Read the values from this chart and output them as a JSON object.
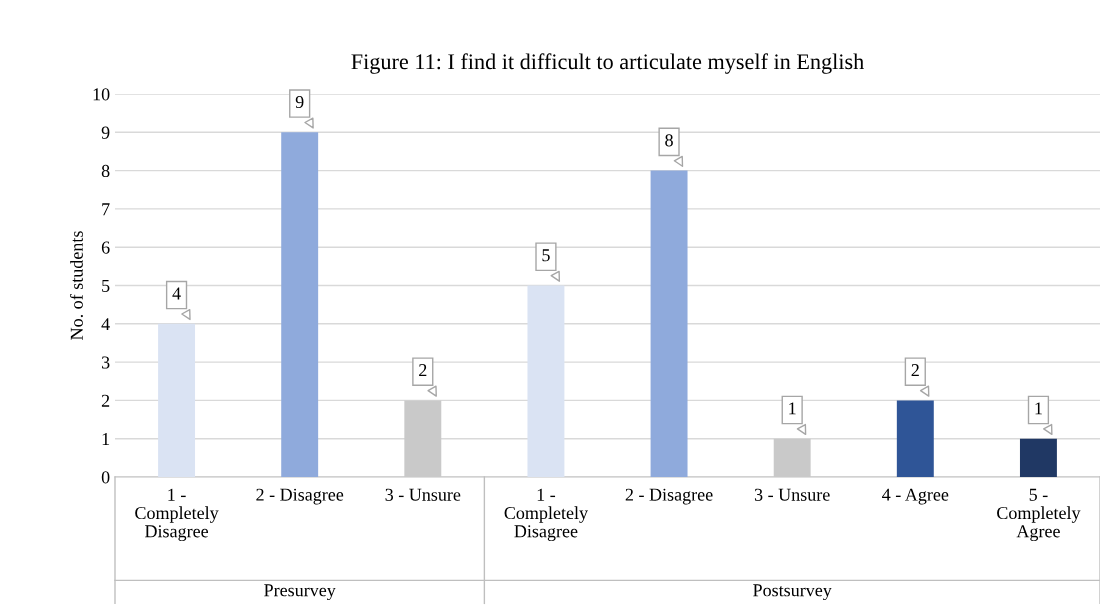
{
  "chart_data": {
    "type": "bar",
    "title": "Figure 11: I find it difficult to articulate myself in English",
    "ylabel": "No. of students",
    "categories": [
      "1 -\nCompletely\nDisagree",
      "2 - Disagree",
      "3 - Unsure",
      "1 -\nCompletely\nDisagree",
      "2 - Disagree",
      "3 - Unsure",
      "4 - Agree",
      "5 -\nCompletely\nAgree"
    ],
    "values": [
      4,
      9,
      2,
      5,
      8,
      1,
      2,
      1
    ],
    "colors": [
      "#dae3f3",
      "#8faadc",
      "#c9c9c9",
      "#dae3f3",
      "#8faadc",
      "#c9c9c9",
      "#2f5597",
      "#203864"
    ],
    "annotations": [
      "Presurvey",
      "Postsurvey"
    ],
    "ylim": [
      0,
      10
    ],
    "yticks": [
      0,
      1,
      2,
      3,
      4,
      5,
      6,
      7,
      8,
      9,
      10
    ],
    "grid": "y",
    "data_labels": true
  }
}
